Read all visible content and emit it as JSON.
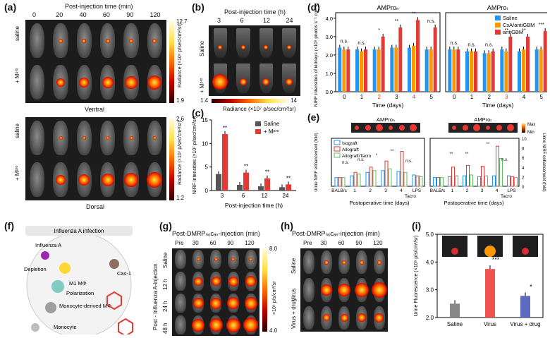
{
  "panel_a": {
    "label": "(a)",
    "time_title": "Post-injection time (min)",
    "times": [
      "0",
      "20",
      "40",
      "60",
      "90",
      "120"
    ],
    "row_labels": [
      "saline",
      "+ Mᵖʳᵒ",
      "saline",
      "+ Mᵖʳᵒ"
    ],
    "view_ventral": "Ventral",
    "view_dorsal": "Dorsal",
    "cbar_top": {
      "max": "12.7",
      "min": "1.9",
      "label": "Radiance (×10⁶ p/sec/cm²/sr)"
    },
    "cbar_bottom": {
      "max": "2.6",
      "min": "1.2",
      "label": "Radiance (×10⁷ p/sec/cm²/sr)"
    }
  },
  "panel_b": {
    "label": "(b)",
    "time_title": "Post-injection time (h)",
    "times": [
      "3",
      "6",
      "12",
      "24"
    ],
    "row_labels": [
      "Saline",
      "+ Mᵖʳᵒ"
    ],
    "cbar_min": "1.4",
    "cbar_max": "14",
    "cbar_label": "Radiance (×10⁷ p/sec/cm²/sr)"
  },
  "panel_c": {
    "label": "(c)",
    "chart_data": {
      "type": "bar",
      "categories": [
        "3",
        "6",
        "12",
        "24"
      ],
      "series": [
        {
          "name": "Saline",
          "values": [
            3.5,
            1.2,
            0.9,
            0.7
          ],
          "color": "#555555"
        },
        {
          "name": "+ Mᵖʳᵒ",
          "values": [
            12.0,
            3.8,
            2.6,
            1.3
          ],
          "color": "#e53935"
        }
      ],
      "sig": [
        "**",
        "**",
        "**",
        "**"
      ],
      "xlabel": "Post-injection time (h)",
      "ylabel": "NIRF intensities (×10⁷ p/sec/cm²/sr)",
      "yticks": [
        "0",
        "5",
        "10",
        "15"
      ],
      "ylim": [
        0,
        15
      ]
    }
  },
  "panel_d": {
    "label": "(d)",
    "chart_data": [
      {
        "type": "bar",
        "title": "AMProₙ",
        "categories": [
          "0",
          "1",
          "2",
          "3",
          "4",
          "5"
        ],
        "series": [
          {
            "name": "Saline",
            "values": [
              2.4,
              2.3,
              2.3,
              2.4,
              2.4,
              2.3
            ],
            "color": "#2196f3"
          },
          {
            "name": "CsA/antiGBM",
            "values": [
              2.3,
              2.2,
              2.3,
              2.4,
              2.5,
              2.3
            ],
            "color": "#ff9800"
          },
          {
            "name": "antiGBM",
            "values": [
              2.3,
              2.3,
              3.0,
              3.5,
              3.9,
              3.5
            ],
            "color": "#e53935"
          }
        ],
        "sig": [
          "n.s.",
          "n.s.",
          "*",
          "**",
          "**",
          "n.s."
        ],
        "xlabel": "Time (days)",
        "highlight_ticks": [
          "2",
          "4"
        ],
        "ylabel": "NIRF intensities of kidneys (×10⁸ photos s⁻¹ cm² sr⁻¹)",
        "yticks": [
          "0.0",
          "1.0",
          "2.0",
          "3.0",
          "4.0"
        ],
        "ylim": [
          0,
          4.3
        ]
      },
      {
        "type": "bar",
        "title": "AMProₜ",
        "categories": [
          "0",
          "1",
          "2",
          "3",
          "4",
          "5"
        ],
        "series": [
          {
            "name": "Saline",
            "values": [
              2.3,
              2.2,
              2.1,
              2.3,
              2.2,
              2.3
            ],
            "color": "#2196f3"
          },
          {
            "name": "CsA/antiGBM",
            "values": [
              2.3,
              2.2,
              2.1,
              2.2,
              2.3,
              2.3
            ],
            "color": "#ff9800"
          },
          {
            "name": "antiGBM",
            "values": [
              2.3,
              2.2,
              2.2,
              3.0,
              3.0,
              3.3
            ],
            "color": "#e53935"
          }
        ],
        "sig": [
          "n.s.",
          "n.s.",
          "n.s.",
          "**",
          "**",
          "***"
        ],
        "xlabel": "Time (days)",
        "highlight_ticks": [
          "3"
        ],
        "ylim": [
          0,
          4.3
        ]
      }
    ]
  },
  "panel_e": {
    "label": "(e)",
    "strip_titles": [
      "AMProₙ",
      "AMProₜ"
    ],
    "strip_max": "Max",
    "strip_min": "Min",
    "legend": [
      "Isograft",
      "Allograft",
      "Allograft/Tacro"
    ],
    "legend_colors": [
      "#2196f3",
      "#e53935",
      "#66bb6a"
    ],
    "ylabel_left": "Urine NIRF enhancement (fold)",
    "ylabel_right": "Urine NIRF enhancement (fold)",
    "xlabel": "Postoperative time (days)",
    "xticks_left": [
      "BALB/c",
      "1",
      "2",
      "3",
      "4",
      "LPS"
    ],
    "xticks_right": [
      "BALB/c",
      "1",
      "2",
      "3",
      "4",
      "LPS"
    ],
    "tacro": "Tacro",
    "yticks_right": [
      "0",
      "2",
      "4",
      "6",
      "8",
      "10"
    ],
    "sig": [
      "n.s.",
      "n.s.",
      "*",
      "**",
      "n.s.",
      "**",
      "**",
      "**",
      "n.s."
    ]
  },
  "panel_f": {
    "label": "(f)",
    "title": "Influenza A infection",
    "labels": [
      "Influenza A",
      "Depletion",
      "M1 MΦ",
      "Polarization",
      "Cas-1",
      "Monocyte-derived MΦ",
      "Monocyte"
    ]
  },
  "panel_g": {
    "label": "(g)",
    "title": "Post-DMRPₙₒᴄₐₛ-injection (min)",
    "cols": [
      "Pre",
      "30",
      "60",
      "90",
      "120"
    ],
    "rows": [
      "Saline",
      "12 h",
      "24 h",
      "48 h"
    ],
    "side_label": "Post - Influenza A-injection",
    "cbar_max": "8.0",
    "cbar_min": "4.0",
    "cbar_label": "×10⁶ p/s/cm²/sr"
  },
  "panel_h": {
    "label": "(h)",
    "title": "Post-DMRPₙₒᴄₐₛ-injection (min)",
    "cols": [
      "Pre",
      "30",
      "60",
      "90",
      "120"
    ],
    "rows": [
      "Saline",
      "Virus",
      "Virus + drug"
    ]
  },
  "panel_i": {
    "label": "(i)",
    "chart_data": {
      "type": "bar",
      "categories": [
        "Saline",
        "Virus",
        "Virus + drug"
      ],
      "values": [
        2.5,
        3.75,
        2.78
      ],
      "colors": [
        "#888888",
        "#ef5350",
        "#5c6bc0"
      ],
      "sig": [
        "",
        "***",
        "*"
      ],
      "ylabel": "Urine Fluorescence (×10⁶ p/s/cm²/sr)",
      "yticks": [
        "2.0",
        "3.0",
        "4.0",
        "5.0"
      ],
      "ylim": [
        2.0,
        5.0
      ]
    }
  }
}
